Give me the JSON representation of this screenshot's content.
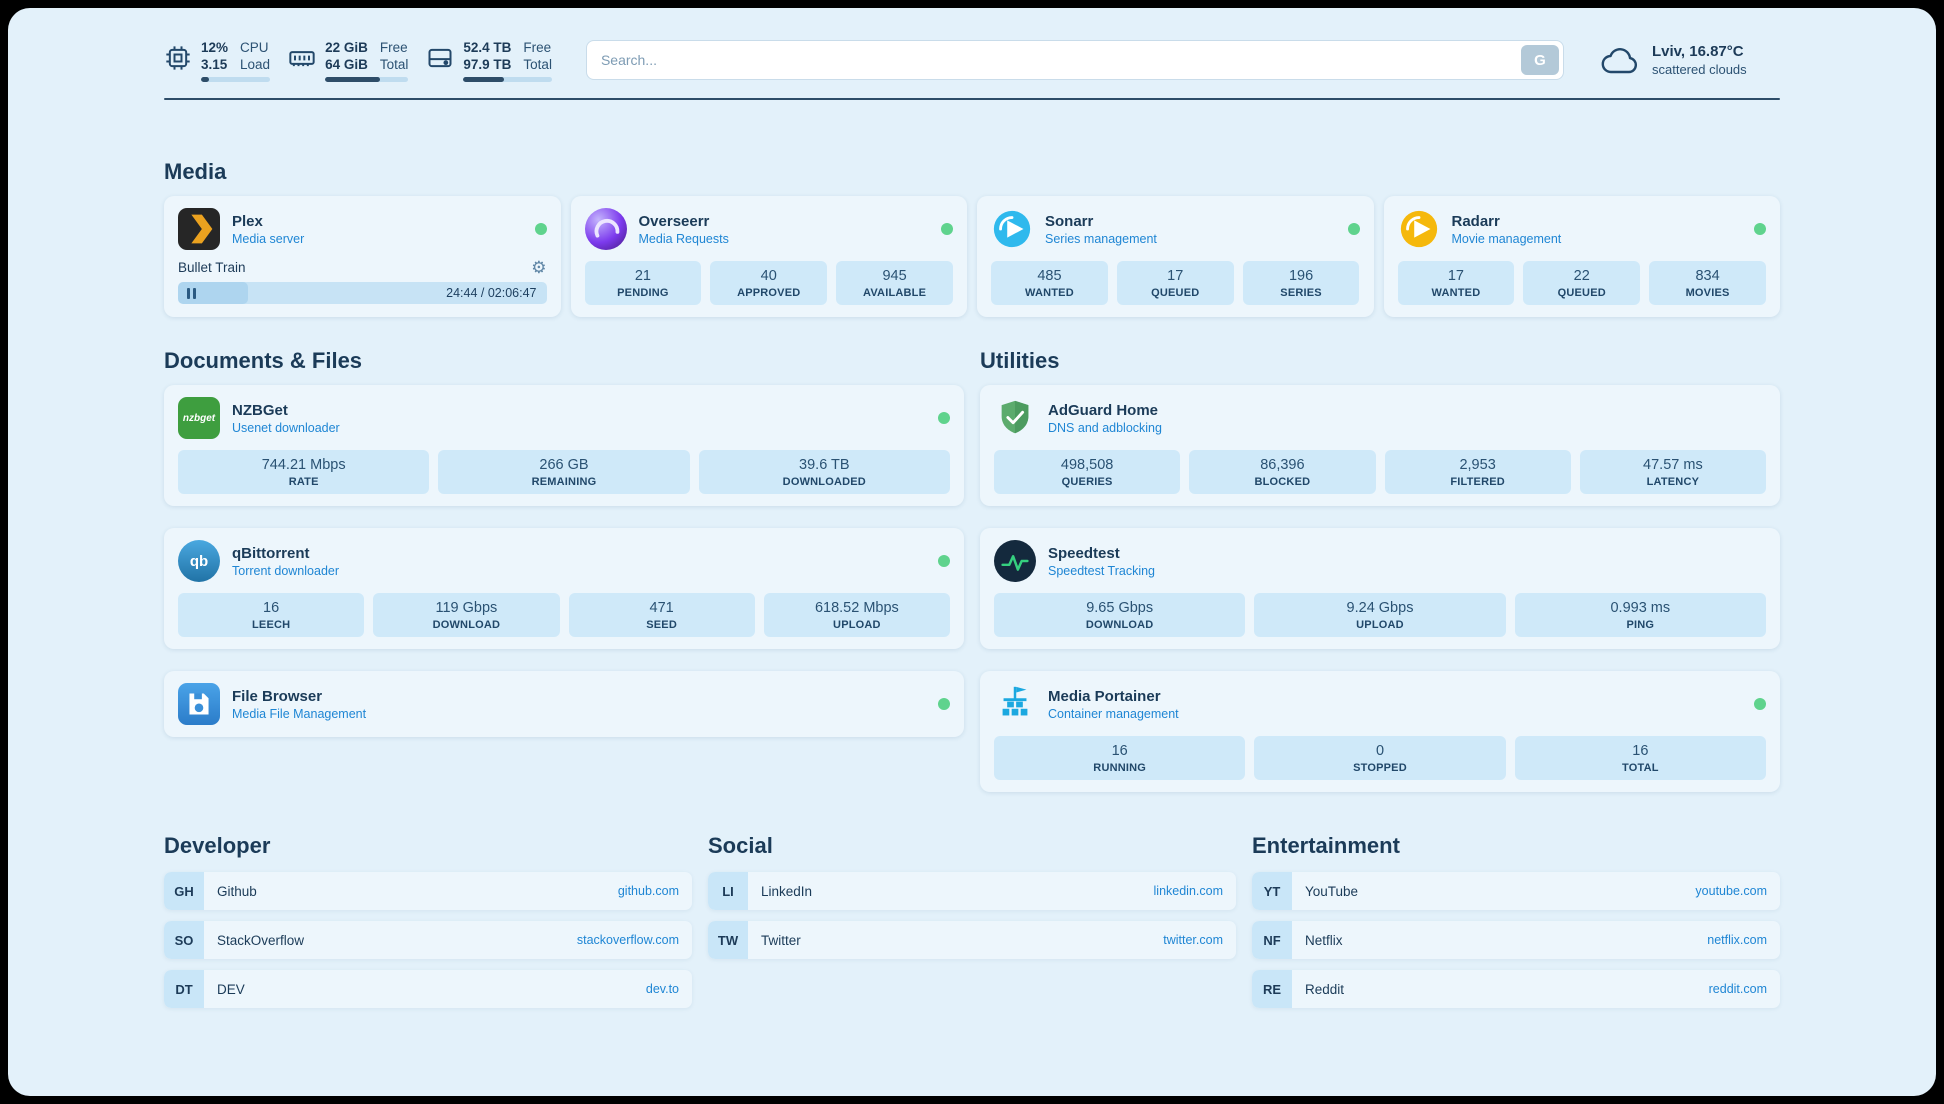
{
  "topbar": {
    "cpu": {
      "v1": "12%",
      "l1": "CPU",
      "v2": "3.15",
      "l2": "Load",
      "progress": 12
    },
    "ram": {
      "v1": "22 GiB",
      "l1": "Free",
      "v2": "64 GiB",
      "l2": "Total",
      "progress": 66
    },
    "disk": {
      "v1": "52.4 TB",
      "l1": "Free",
      "v2": "97.9 TB",
      "l2": "Total",
      "progress": 46
    },
    "search": {
      "placeholder": "Search...",
      "engine_label": "G"
    },
    "weather": {
      "location": "Lviv, 16.87°C",
      "condition": "scattered clouds"
    }
  },
  "media": {
    "heading": "Media",
    "plex": {
      "name": "Plex",
      "subtitle": "Media server",
      "now_playing": "Bullet Train",
      "time": "24:44 / 02:06:47",
      "progress": 19
    },
    "overseerr": {
      "name": "Overseerr",
      "subtitle": "Media Requests",
      "stats": [
        {
          "value": "21",
          "label": "PENDING"
        },
        {
          "value": "40",
          "label": "APPROVED"
        },
        {
          "value": "945",
          "label": "AVAILABLE"
        }
      ]
    },
    "sonarr": {
      "name": "Sonarr",
      "subtitle": "Series management",
      "stats": [
        {
          "value": "485",
          "label": "WANTED"
        },
        {
          "value": "17",
          "label": "QUEUED"
        },
        {
          "value": "196",
          "label": "SERIES"
        }
      ]
    },
    "radarr": {
      "name": "Radarr",
      "subtitle": "Movie management",
      "stats": [
        {
          "value": "17",
          "label": "WANTED"
        },
        {
          "value": "22",
          "label": "QUEUED"
        },
        {
          "value": "834",
          "label": "MOVIES"
        }
      ]
    }
  },
  "documents": {
    "heading": "Documents & Files",
    "nzbget": {
      "name": "NZBGet",
      "subtitle": "Usenet downloader",
      "logo_text": "nzbget",
      "stats": [
        {
          "value": "744.21 Mbps",
          "label": "RATE"
        },
        {
          "value": "266 GB",
          "label": "REMAINING"
        },
        {
          "value": "39.6 TB",
          "label": "DOWNLOADED"
        }
      ]
    },
    "qbittorrent": {
      "name": "qBittorrent",
      "subtitle": "Torrent downloader",
      "logo_text": "qb",
      "stats": [
        {
          "value": "16",
          "label": "LEECH"
        },
        {
          "value": "119 Gbps",
          "label": "DOWNLOAD"
        },
        {
          "value": "471",
          "label": "SEED"
        },
        {
          "value": "618.52 Mbps",
          "label": "UPLOAD"
        }
      ]
    },
    "filebrowser": {
      "name": "File Browser",
      "subtitle": "Media File Management"
    }
  },
  "utilities": {
    "heading": "Utilities",
    "adguard": {
      "name": "AdGuard Home",
      "subtitle": "DNS and adblocking",
      "stats": [
        {
          "value": "498,508",
          "label": "QUERIES"
        },
        {
          "value": "86,396",
          "label": "BLOCKED"
        },
        {
          "value": "2,953",
          "label": "FILTERED"
        },
        {
          "value": "47.57 ms",
          "label": "LATENCY"
        }
      ]
    },
    "speedtest": {
      "name": "Speedtest",
      "subtitle": "Speedtest Tracking",
      "stats": [
        {
          "value": "9.65 Gbps",
          "label": "DOWNLOAD"
        },
        {
          "value": "9.24 Gbps",
          "label": "UPLOAD"
        },
        {
          "value": "0.993 ms",
          "label": "PING"
        }
      ]
    },
    "portainer": {
      "name": "Media Portainer",
      "subtitle": "Container management",
      "stats": [
        {
          "value": "16",
          "label": "RUNNING"
        },
        {
          "value": "0",
          "label": "STOPPED"
        },
        {
          "value": "16",
          "label": "TOTAL"
        }
      ]
    }
  },
  "bookmarks": {
    "developer": {
      "heading": "Developer",
      "items": [
        {
          "badge": "GH",
          "name": "Github",
          "link": "github.com"
        },
        {
          "badge": "SO",
          "name": "StackOverflow",
          "link": "stackoverflow.com"
        },
        {
          "badge": "DT",
          "name": "DEV",
          "link": "dev.to"
        }
      ]
    },
    "social": {
      "heading": "Social",
      "items": [
        {
          "badge": "LI",
          "name": "LinkedIn",
          "link": "linkedin.com"
        },
        {
          "badge": "TW",
          "name": "Twitter",
          "link": "twitter.com"
        }
      ]
    },
    "entertainment": {
      "heading": "Entertainment",
      "items": [
        {
          "badge": "YT",
          "name": "YouTube",
          "link": "youtube.com"
        },
        {
          "badge": "NF",
          "name": "Netflix",
          "link": "netflix.com"
        },
        {
          "badge": "RE",
          "name": "Reddit",
          "link": "reddit.com"
        }
      ]
    }
  },
  "colors": {
    "accent": "#1f86d4",
    "status_green": "#5fd38d",
    "divider": "#2e4d68"
  }
}
